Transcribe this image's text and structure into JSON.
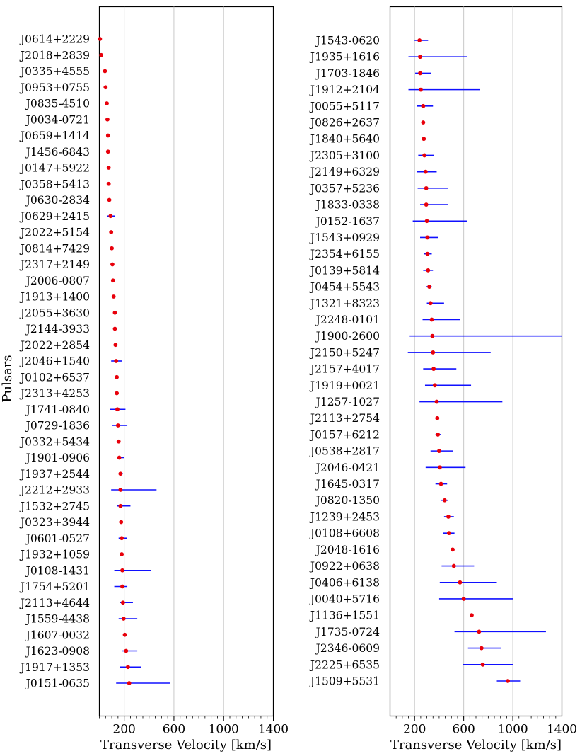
{
  "chart_data": [
    {
      "type": "scatter",
      "ylabel": "Pulsars",
      "xlabel": "Transverse Velocity [km/s]",
      "xlim": [
        0,
        1400
      ],
      "xticks": [
        200,
        600,
        1000,
        1400
      ],
      "grid": "vertical",
      "marker_color": "#e8000b",
      "errorbar_color": "#1010ff",
      "categories": [
        "J0614+2229",
        "J2018+2839",
        "J0335+4555",
        "J0953+0755",
        "J0835-4510",
        "J0034-0721",
        "J0659+1414",
        "J1456-6843",
        "J0147+5922",
        "J0358+5413",
        "J0630-2834",
        "J0629+2415",
        "J2022+5154",
        "J0814+7429",
        "J2317+2149",
        "J2006-0807",
        "J1913+1400",
        "J2055+3630",
        "J2144-3933",
        "J2022+2854",
        "J2046+1540",
        "J0102+6537",
        "J2313+4253",
        "J1741-0840",
        "J0729-1836",
        "J0332+5434",
        "J1901-0906",
        "J1937+2544",
        "J2212+2933",
        "J1532+2745",
        "J0323+3944",
        "J0601-0527",
        "J1932+1059",
        "J0108-1431",
        "J1754+5201",
        "J2113+4644",
        "J1559-4438",
        "J1607-0032",
        "J1623-0908",
        "J1917+1353",
        "J0151-0635"
      ],
      "values": [
        5,
        15,
        45,
        50,
        60,
        65,
        70,
        70,
        75,
        75,
        80,
        90,
        95,
        100,
        105,
        110,
        115,
        125,
        125,
        130,
        135,
        140,
        140,
        145,
        150,
        155,
        160,
        170,
        170,
        170,
        175,
        180,
        180,
        185,
        185,
        190,
        195,
        205,
        215,
        230,
        240
      ],
      "err_low": [
        0,
        0,
        0,
        0,
        0,
        0,
        0,
        0,
        0,
        0,
        0,
        25,
        0,
        0,
        0,
        0,
        0,
        0,
        0,
        0,
        40,
        0,
        0,
        60,
        45,
        0,
        20,
        15,
        75,
        25,
        0,
        25,
        0,
        65,
        65,
        25,
        40,
        0,
        35,
        65,
        105
      ],
      "err_high": [
        0,
        0,
        0,
        0,
        0,
        0,
        0,
        0,
        0,
        0,
        0,
        35,
        0,
        0,
        0,
        0,
        0,
        0,
        0,
        0,
        45,
        0,
        0,
        65,
        75,
        0,
        40,
        20,
        290,
        80,
        0,
        40,
        0,
        230,
        40,
        80,
        110,
        0,
        90,
        105,
        330
      ]
    },
    {
      "type": "scatter",
      "xlabel": "Transverse Velocity [km/s]",
      "xlim": [
        0,
        1400
      ],
      "xticks": [
        200,
        600,
        1000,
        1400
      ],
      "grid": "vertical",
      "marker_color": "#e8000b",
      "errorbar_color": "#1010ff",
      "categories": [
        "J1543-0620",
        "J1935+1616",
        "J1703-1846",
        "J1912+2104",
        "J0055+5117",
        "J0826+2637",
        "J1840+5640",
        "J2305+3100",
        "J2149+6329",
        "J0357+5236",
        "J1833-0338",
        "J0152-1637",
        "J1543+0929",
        "J2354+6155",
        "J0139+5814",
        "J0454+5543",
        "J1321+8323",
        "J2248-0101",
        "J1900-2600",
        "J2150+5247",
        "J2157+4017",
        "J1919+0021",
        "J1257-1027",
        "J2113+2754",
        "J0157+6212",
        "J0538+2817",
        "J2046-0421",
        "J1645-0317",
        "J0820-1350",
        "J1239+2453",
        "J0108+6608",
        "J2048-1616",
        "J0922+0638",
        "J0406+6138",
        "J0040+5716",
        "J1136+1551",
        "J1735-0724",
        "J2346-0609",
        "J2225+6535",
        "J1509+5531"
      ],
      "values": [
        240,
        245,
        245,
        250,
        270,
        270,
        275,
        280,
        290,
        295,
        295,
        300,
        305,
        305,
        310,
        320,
        330,
        340,
        345,
        350,
        355,
        365,
        380,
        385,
        390,
        400,
        405,
        415,
        445,
        475,
        480,
        510,
        520,
        570,
        600,
        665,
        725,
        745,
        755,
        960
      ],
      "err_low": [
        40,
        95,
        40,
        100,
        50,
        0,
        0,
        50,
        70,
        70,
        50,
        115,
        60,
        30,
        40,
        25,
        30,
        75,
        185,
        205,
        85,
        80,
        140,
        0,
        20,
        70,
        115,
        45,
        30,
        35,
        50,
        0,
        100,
        165,
        200,
        0,
        200,
        110,
        160,
        90
      ],
      "err_high": [
        70,
        385,
        90,
        480,
        80,
        0,
        0,
        75,
        90,
        175,
        175,
        325,
        85,
        35,
        40,
        20,
        110,
        230,
        1055,
        470,
        185,
        295,
        535,
        0,
        25,
        115,
        210,
        50,
        30,
        45,
        45,
        0,
        165,
        300,
        405,
        0,
        545,
        160,
        250,
        100
      ]
    }
  ]
}
